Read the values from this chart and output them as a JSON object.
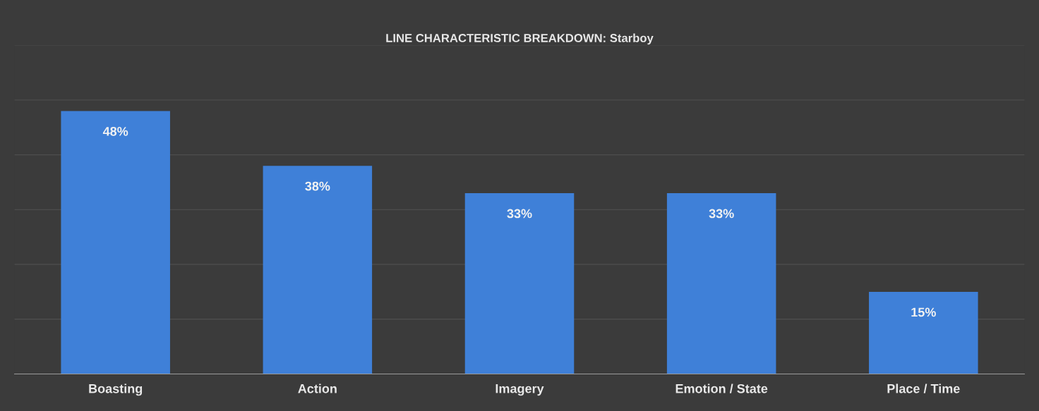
{
  "chart_data": {
    "type": "bar",
    "title": "LINE CHARACTERISTIC BREAKDOWN: Starboy",
    "categories": [
      "Boasting",
      "Action",
      "Imagery",
      "Emotion / State",
      "Place / Time"
    ],
    "values": [
      48,
      38,
      33,
      33,
      15
    ],
    "value_labels": [
      "48%",
      "38%",
      "33%",
      "33%",
      "15%"
    ],
    "color": "#3f80d8",
    "ylim": [
      0,
      60
    ],
    "yticks": [
      {
        "value": 0,
        "label": null
      },
      {
        "value": 10,
        "label": null
      },
      {
        "value": 20,
        "label": null
      },
      {
        "value": 30,
        "label": null
      },
      {
        "value": 40,
        "label": null
      },
      {
        "value": 50,
        "label": null
      },
      {
        "value": 60,
        "label": null
      }
    ],
    "tick_labels": "x",
    "grid": "y"
  }
}
